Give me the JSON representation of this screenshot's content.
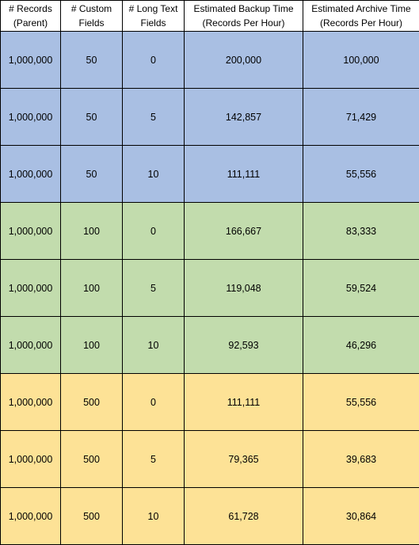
{
  "table": {
    "headers": [
      {
        "line1": "# Records",
        "line2": "(Parent)"
      },
      {
        "line1": "# Custom",
        "line2": "Fields"
      },
      {
        "line1": "# Long Text",
        "line2": "Fields"
      },
      {
        "line1": "Estimated Backup Time",
        "line2": "(Records Per Hour)"
      },
      {
        "line1": "Estimated Archive Time",
        "line2": "(Records Per Hour)"
      }
    ],
    "rows": [
      {
        "group": "blue",
        "records": "1,000,000",
        "custom_fields": "50",
        "long_text_fields": "0",
        "backup": "200,000",
        "archive": "100,000"
      },
      {
        "group": "blue",
        "records": "1,000,000",
        "custom_fields": "50",
        "long_text_fields": "5",
        "backup": "142,857",
        "archive": "71,429"
      },
      {
        "group": "blue",
        "records": "1,000,000",
        "custom_fields": "50",
        "long_text_fields": "10",
        "backup": "111,111",
        "archive": "55,556"
      },
      {
        "group": "green",
        "records": "1,000,000",
        "custom_fields": "100",
        "long_text_fields": "0",
        "backup": "166,667",
        "archive": "83,333"
      },
      {
        "group": "green",
        "records": "1,000,000",
        "custom_fields": "100",
        "long_text_fields": "5",
        "backup": "119,048",
        "archive": "59,524"
      },
      {
        "group": "green",
        "records": "1,000,000",
        "custom_fields": "100",
        "long_text_fields": "10",
        "backup": "92,593",
        "archive": "46,296"
      },
      {
        "group": "yellow",
        "records": "1,000,000",
        "custom_fields": "500",
        "long_text_fields": "0",
        "backup": "111,111",
        "archive": "55,556"
      },
      {
        "group": "yellow",
        "records": "1,000,000",
        "custom_fields": "500",
        "long_text_fields": "5",
        "backup": "79,365",
        "archive": "39,683"
      },
      {
        "group": "yellow",
        "records": "1,000,000",
        "custom_fields": "500",
        "long_text_fields": "10",
        "backup": "61,728",
        "archive": "30,864"
      }
    ]
  },
  "colors": {
    "blue": "#a9bfe3",
    "green": "#c2dcad",
    "yellow": "#fde296",
    "border": "#000000",
    "header_bg": "#ffffff"
  }
}
